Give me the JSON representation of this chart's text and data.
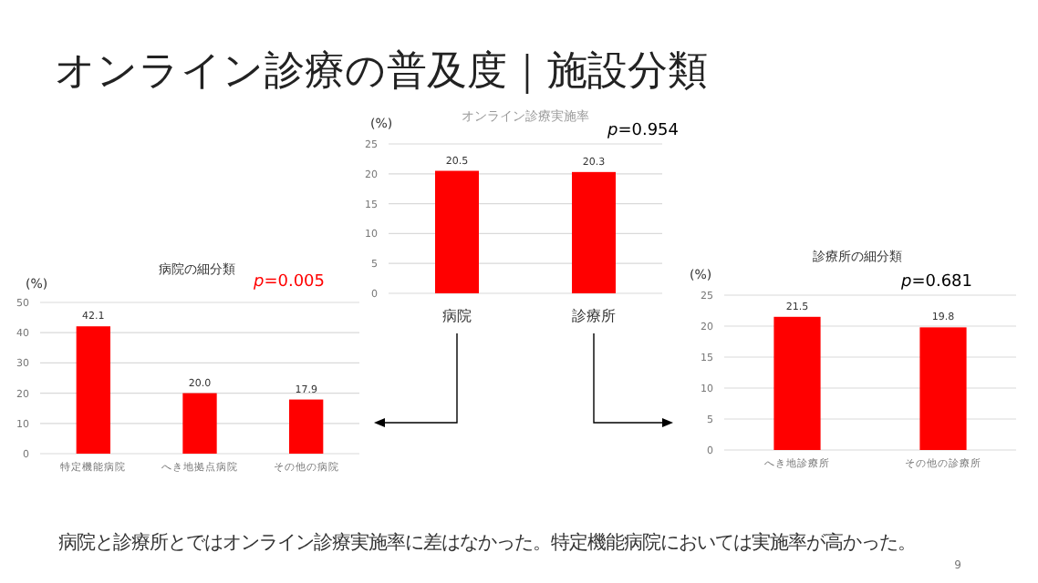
{
  "chart_data": [
    {
      "type": "bar",
      "title": "オンライン診療実施率",
      "ylabel": "(%)",
      "categories": [
        "病院",
        "診療所"
      ],
      "values": [
        20.5,
        20.3
      ],
      "value_labels": [
        "20.5",
        "20.3"
      ],
      "color": "#ff0000",
      "ylim": [
        0,
        25
      ],
      "yticks": [
        0,
        5,
        10,
        15,
        20,
        25
      ],
      "grid": "y",
      "annotations": [
        "オンライン診療の普及度｜施設分類",
        "*p*=0.954",
        "病院と診療所とではオンライン診療実施率に差はなかった。特定機能病院においては実施率が高かった。",
        "9"
      ]
    },
    {
      "type": "bar",
      "title": "病院の細分類",
      "ylabel": "(%)",
      "categories": [
        "特定機能病院",
        "へき地拠点病院",
        "その他の病院"
      ],
      "values": [
        42.1,
        20.0,
        17.9
      ],
      "value_labels": [
        "42.1",
        "20.0",
        "17.9"
      ],
      "color": "#ff0000",
      "ylim": [
        0,
        50
      ],
      "yticks": [
        0,
        10,
        20,
        30,
        40,
        50
      ],
      "grid": "y",
      "annotations": [
        "*p*=0.005"
      ]
    },
    {
      "type": "bar",
      "title": "診療所の細分類",
      "ylabel": "(%)",
      "categories": [
        "へき地診療所",
        "その他の診療所"
      ],
      "values": [
        21.5,
        19.8
      ],
      "value_labels": [
        "21.5",
        "19.8"
      ],
      "color": "#ff0000",
      "ylim": [
        0,
        25
      ],
      "yticks": [
        0,
        5,
        10,
        15,
        20,
        25
      ],
      "grid": "y",
      "annotations": [
        "*p*=0.681"
      ]
    }
  ]
}
